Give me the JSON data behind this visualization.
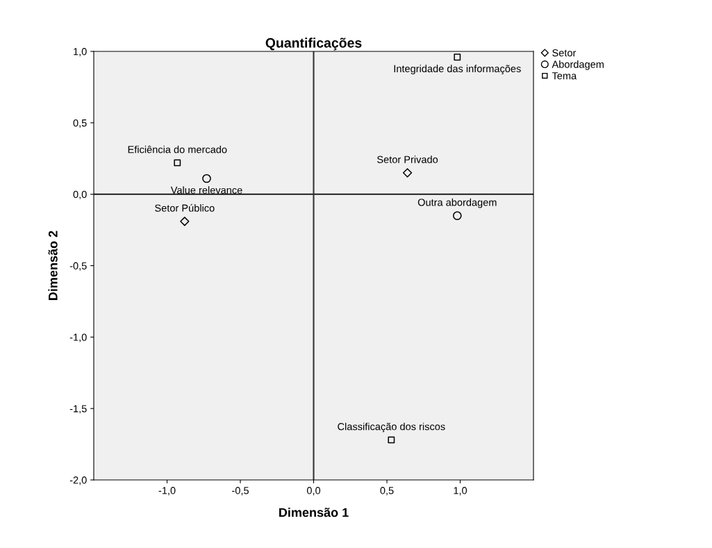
{
  "chart_data": {
    "type": "scatter",
    "title": "Quantificações",
    "xlabel": "Dimensão 1",
    "ylabel": "Dimensão 2",
    "xlim": [
      -1.5,
      1.5
    ],
    "xticks": [
      {
        "value": -1.0,
        "label": "-1,0"
      },
      {
        "value": -0.5,
        "label": "-0,5"
      },
      {
        "value": 0.0,
        "label": "0,0"
      },
      {
        "value": 0.5,
        "label": "0,5"
      },
      {
        "value": 1.0,
        "label": "1,0"
      }
    ],
    "ylim": [
      -2.0,
      1.0
    ],
    "yticks": [
      {
        "value": -2.0,
        "label": "-2,0"
      },
      {
        "value": -1.5,
        "label": "-1,5"
      },
      {
        "value": -1.0,
        "label": "-1,0"
      },
      {
        "value": -0.5,
        "label": "-0,5"
      },
      {
        "value": 0.0,
        "label": "0,0"
      },
      {
        "value": 0.5,
        "label": "0,5"
      },
      {
        "value": 1.0,
        "label": "1,0"
      }
    ],
    "series": [
      {
        "name": "Setor",
        "color": "#000000",
        "marker": "diamond",
        "x": [
          0.64,
          -0.88
        ],
        "values": [
          0.15,
          -0.19
        ]
      },
      {
        "name": "Abordagem",
        "color": "#000000",
        "marker": "circle",
        "x": [
          -0.73,
          0.98
        ],
        "values": [
          0.11,
          -0.15
        ]
      },
      {
        "name": "Tema",
        "color": "#000000",
        "marker": "square",
        "x": [
          0.98,
          -0.93,
          0.53
        ],
        "values": [
          0.96,
          0.22,
          -1.72
        ]
      }
    ],
    "annotations": [
      {
        "text": "Setor Privado",
        "x": 0.64,
        "y": 0.15
      },
      {
        "text": "Setor Público",
        "x": -0.88,
        "y": -0.19
      },
      {
        "text": "Value relevance",
        "x": -0.73,
        "y": 0.11
      },
      {
        "text": "Outra abordagem",
        "x": 0.98,
        "y": -0.15
      },
      {
        "text": "Integridade das informações",
        "x": 0.98,
        "y": 0.96
      },
      {
        "text": "Eficiência do mercado",
        "x": -0.93,
        "y": 0.22
      },
      {
        "text": "Classificação dos riscos",
        "x": 0.53,
        "y": -1.72
      }
    ],
    "ref_lines": [
      {
        "axis": "y",
        "value": 0.0,
        "color": "#000000"
      },
      {
        "axis": "x",
        "value": 0.0,
        "color": "#333333"
      }
    ],
    "grid": false,
    "legend": "top right"
  }
}
